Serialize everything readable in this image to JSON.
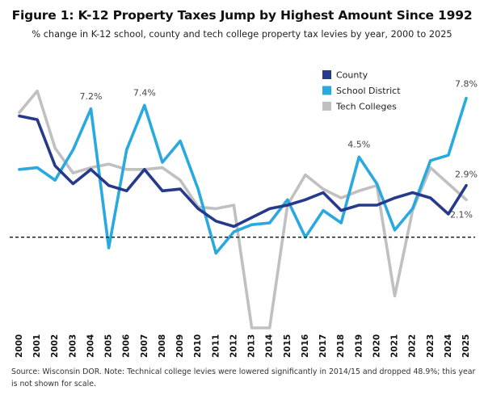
{
  "chart_data": {
    "type": "line",
    "title": "Figure 1: K-12 Property Taxes Jump by Highest Amount Since 1992",
    "subtitle": "% change in K-12 school, county and tech college property tax levies by year, 2000 to 2025",
    "x": [
      "2000",
      "2001",
      "2002",
      "2003",
      "2004",
      "2005",
      "2006",
      "2007",
      "2008",
      "2009",
      "2010",
      "2011",
      "2012",
      "2013",
      "2014",
      "2015",
      "2016",
      "2017",
      "2018",
      "2019",
      "2020",
      "2021",
      "2022",
      "2023",
      "2024",
      "2025"
    ],
    "ylim": [
      -5,
      10.5
    ],
    "grid": false,
    "baseline": 0,
    "legend_placement": "top-right",
    "series": [
      {
        "name": "County",
        "color": "#263a8c",
        "values": [
          6.8,
          6.6,
          4.0,
          3.0,
          3.8,
          2.9,
          2.6,
          3.8,
          2.6,
          2.7,
          1.6,
          0.9,
          0.6,
          1.1,
          1.6,
          1.8,
          2.1,
          2.5,
          1.5,
          1.8,
          1.8,
          2.2,
          2.5,
          2.2,
          1.3,
          2.9
        ]
      },
      {
        "name": "School District",
        "color": "#2aa9df",
        "values": [
          3.8,
          3.9,
          3.2,
          4.9,
          7.2,
          -0.6,
          4.9,
          7.4,
          4.2,
          5.4,
          2.7,
          -0.9,
          0.3,
          0.7,
          0.8,
          2.1,
          0.0,
          1.5,
          0.8,
          4.5,
          3.0,
          0.4,
          1.6,
          4.3,
          4.6,
          7.8
        ]
      },
      {
        "name": "Tech Colleges",
        "color": "#c0c0c0",
        "values": [
          7.0,
          8.2,
          5.0,
          3.6,
          3.9,
          4.1,
          3.8,
          3.8,
          3.9,
          3.2,
          1.7,
          1.6,
          1.8,
          null,
          null,
          1.8,
          3.5,
          2.7,
          2.2,
          2.6,
          2.9,
          -3.3,
          1.5,
          3.9,
          3.0,
          2.1
        ]
      }
    ],
    "annotations": [
      {
        "text": "7.2%",
        "series": "School District",
        "x": "2004",
        "y": 7.2
      },
      {
        "text": "7.4%",
        "series": "School District",
        "x": "2007",
        "y": 7.4
      },
      {
        "text": "4.5%",
        "series": "School District",
        "x": "2019",
        "y": 4.5
      },
      {
        "text": "7.8%",
        "series": "School District",
        "x": "2025",
        "y": 7.8
      },
      {
        "text": "2.9%",
        "series": "County",
        "x": "2025",
        "y": 2.9
      },
      {
        "text": "2.1%",
        "series": "Tech Colleges",
        "x": "2025",
        "y": 2.1
      }
    ]
  },
  "footer": {
    "source": "Source: Wisconsin DOR. Note: Technical college levies were lowered significantly in 2014/15 and dropped 48.9%; this year is not shown for scale."
  }
}
